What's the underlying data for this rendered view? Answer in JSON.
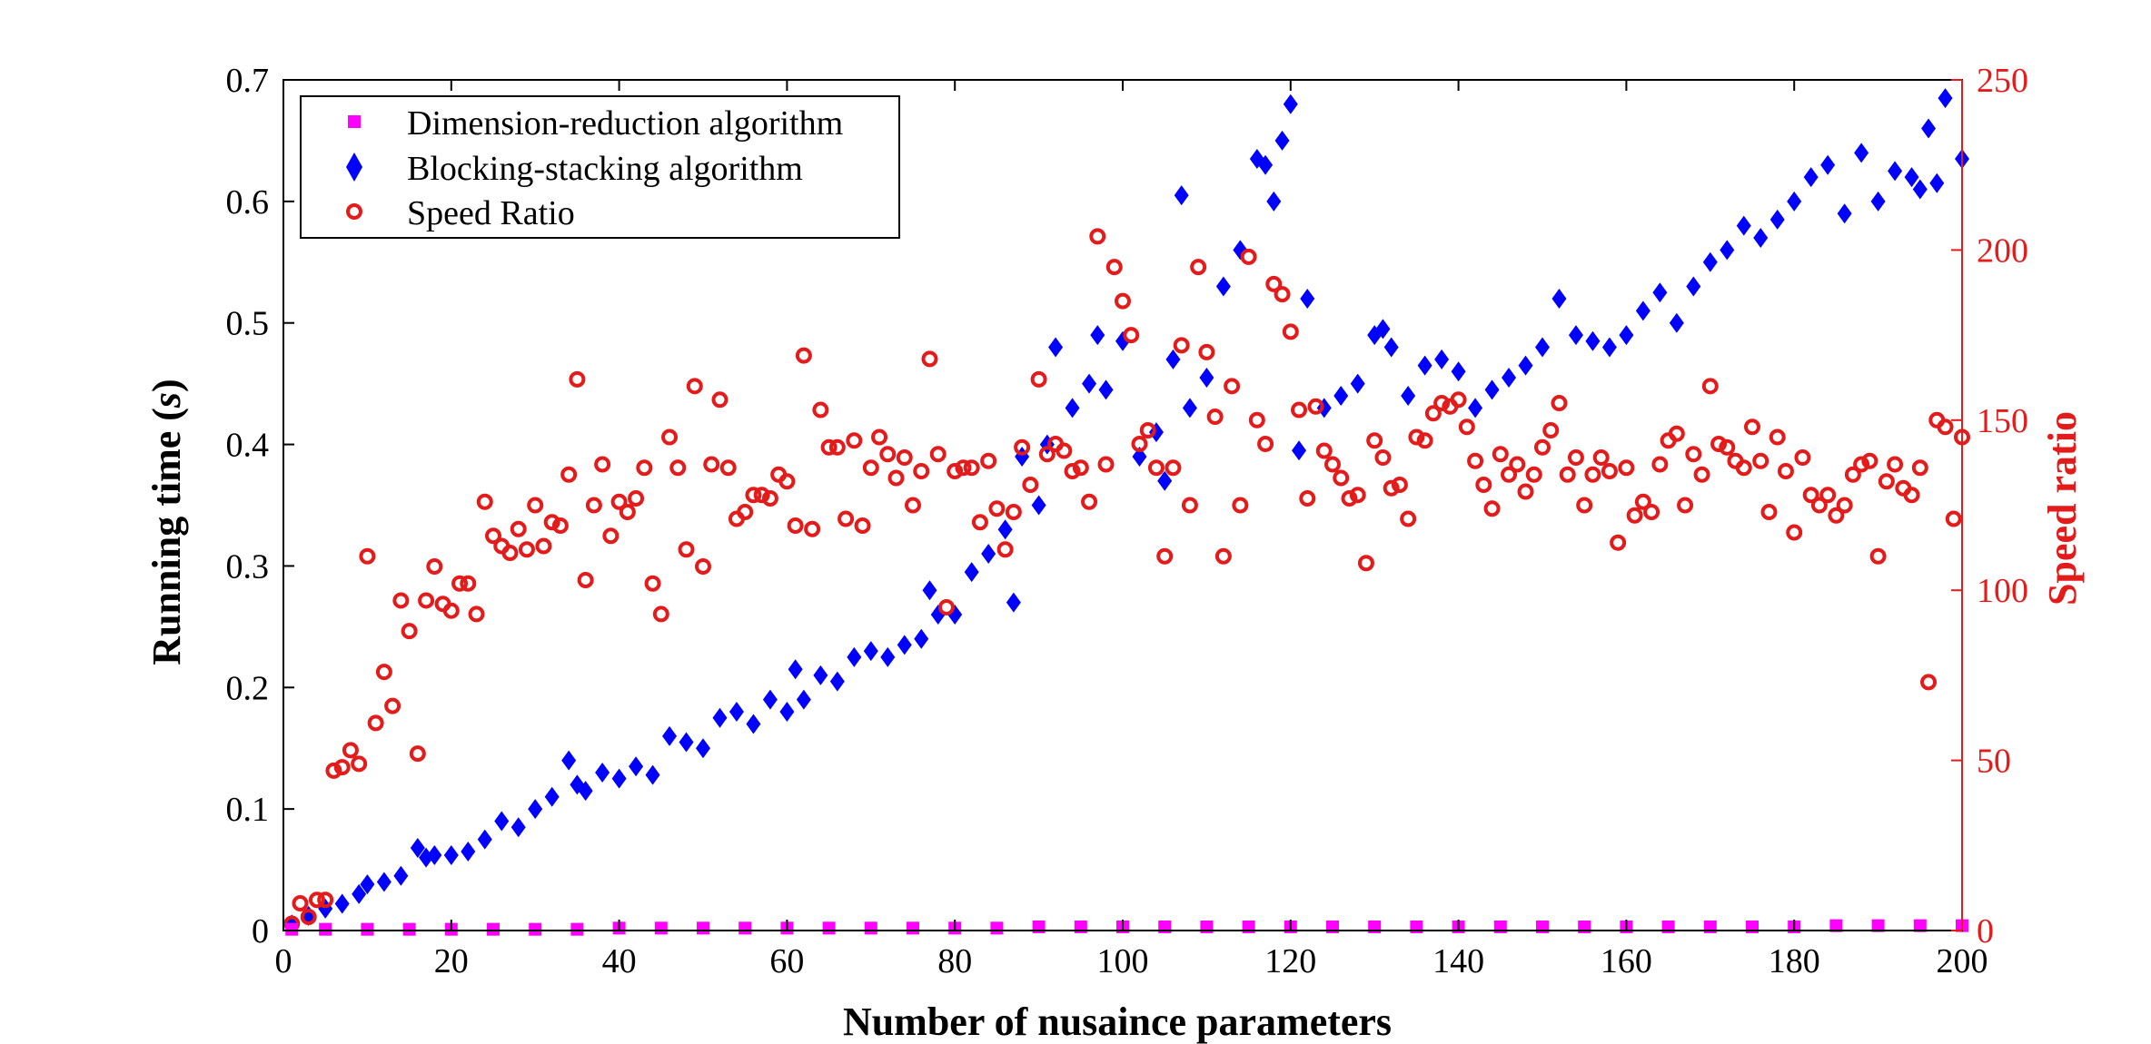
{
  "chart_data": {
    "type": "scatter",
    "xlabel": "Number of nusaince parameters",
    "ylabel": "Running time (s)",
    "ylabel_parts": [
      "Running time (",
      "s",
      ")"
    ],
    "y2label": "Speed ratio",
    "xlim": [
      0,
      200
    ],
    "ylim": [
      0,
      0.7
    ],
    "y2lim": [
      0,
      250
    ],
    "x_ticks": [
      "0",
      "20",
      "40",
      "60",
      "80",
      "100",
      "120",
      "140",
      "160",
      "180",
      "200"
    ],
    "y_ticks": [
      "0",
      "0.1",
      "0.2",
      "0.3",
      "0.4",
      "0.5",
      "0.6",
      "0.7"
    ],
    "y2_ticks": [
      "0",
      "50",
      "100",
      "150",
      "200",
      "250"
    ],
    "grid": false,
    "legend_position": "top-left",
    "colors": {
      "dimension": "#ff00ff",
      "blocking": "#0000ff",
      "ratio": "#e41b1b",
      "right_axis": "#e41b1b"
    },
    "series": [
      {
        "name": "Dimension-reduction algorithm",
        "marker": "square",
        "axis": "left",
        "x": [
          1,
          5,
          10,
          15,
          20,
          25,
          30,
          35,
          40,
          45,
          50,
          55,
          60,
          65,
          70,
          75,
          80,
          85,
          90,
          95,
          100,
          105,
          110,
          115,
          120,
          125,
          130,
          135,
          140,
          145,
          150,
          155,
          160,
          165,
          170,
          175,
          180,
          185,
          190,
          195,
          200
        ],
        "values": [
          0.001,
          0.001,
          0.001,
          0.001,
          0.001,
          0.001,
          0.001,
          0.001,
          0.002,
          0.002,
          0.002,
          0.002,
          0.002,
          0.002,
          0.002,
          0.002,
          0.002,
          0.002,
          0.003,
          0.003,
          0.003,
          0.003,
          0.003,
          0.003,
          0.003,
          0.003,
          0.003,
          0.003,
          0.003,
          0.003,
          0.003,
          0.003,
          0.003,
          0.003,
          0.003,
          0.003,
          0.003,
          0.004,
          0.004,
          0.004,
          0.004
        ]
      },
      {
        "name": "Blocking-stacking algorithm",
        "marker": "diamond",
        "axis": "left",
        "x": [
          1,
          3,
          5,
          7,
          9,
          10,
          12,
          14,
          16,
          17,
          18,
          20,
          22,
          24,
          26,
          28,
          30,
          32,
          34,
          35,
          36,
          38,
          40,
          42,
          44,
          46,
          48,
          50,
          52,
          54,
          56,
          58,
          60,
          61,
          62,
          64,
          66,
          68,
          70,
          72,
          74,
          76,
          77,
          78,
          80,
          82,
          84,
          86,
          87,
          88,
          90,
          91,
          92,
          94,
          96,
          97,
          98,
          100,
          102,
          104,
          105,
          106,
          107,
          108,
          110,
          112,
          114,
          116,
          117,
          118,
          119,
          120,
          121,
          122,
          124,
          126,
          128,
          130,
          131,
          132,
          134,
          136,
          138,
          140,
          142,
          144,
          146,
          148,
          150,
          152,
          154,
          156,
          158,
          160,
          162,
          164,
          166,
          168,
          170,
          172,
          174,
          176,
          178,
          180,
          182,
          184,
          186,
          188,
          190,
          192,
          194,
          195,
          196,
          197,
          198,
          200
        ],
        "values": [
          0.005,
          0.012,
          0.018,
          0.022,
          0.03,
          0.038,
          0.04,
          0.045,
          0.068,
          0.06,
          0.062,
          0.062,
          0.065,
          0.075,
          0.09,
          0.085,
          0.1,
          0.11,
          0.14,
          0.12,
          0.115,
          0.13,
          0.125,
          0.135,
          0.128,
          0.16,
          0.155,
          0.15,
          0.175,
          0.18,
          0.17,
          0.19,
          0.18,
          0.215,
          0.19,
          0.21,
          0.205,
          0.225,
          0.23,
          0.225,
          0.235,
          0.24,
          0.28,
          0.26,
          0.26,
          0.295,
          0.31,
          0.33,
          0.27,
          0.39,
          0.35,
          0.4,
          0.48,
          0.43,
          0.45,
          0.49,
          0.445,
          0.485,
          0.39,
          0.41,
          0.37,
          0.47,
          0.605,
          0.43,
          0.455,
          0.53,
          0.56,
          0.635,
          0.63,
          0.6,
          0.65,
          0.68,
          0.395,
          0.52,
          0.43,
          0.44,
          0.45,
          0.49,
          0.495,
          0.48,
          0.44,
          0.465,
          0.47,
          0.46,
          0.43,
          0.445,
          0.455,
          0.465,
          0.48,
          0.52,
          0.49,
          0.485,
          0.48,
          0.49,
          0.51,
          0.525,
          0.5,
          0.53,
          0.55,
          0.56,
          0.58,
          0.57,
          0.585,
          0.6,
          0.62,
          0.63,
          0.59,
          0.64,
          0.6,
          0.625,
          0.62,
          0.61,
          0.66,
          0.615,
          0.685,
          0.635
        ]
      },
      {
        "name": "Speed Ratio",
        "marker": "circle",
        "axis": "right",
        "x": [
          1,
          2,
          3,
          4,
          5,
          6,
          7,
          8,
          9,
          10,
          11,
          12,
          13,
          14,
          15,
          16,
          17,
          18,
          19,
          20,
          21,
          22,
          23,
          24,
          25,
          26,
          27,
          28,
          29,
          30,
          31,
          32,
          33,
          34,
          35,
          36,
          37,
          38,
          39,
          40,
          41,
          42,
          43,
          44,
          45,
          46,
          47,
          48,
          49,
          50,
          51,
          52,
          53,
          54,
          55,
          56,
          57,
          58,
          59,
          60,
          61,
          62,
          63,
          64,
          65,
          66,
          67,
          68,
          69,
          70,
          71,
          72,
          73,
          74,
          75,
          76,
          77,
          78,
          79,
          80,
          81,
          82,
          83,
          84,
          85,
          86,
          87,
          88,
          89,
          90,
          91,
          92,
          93,
          94,
          95,
          96,
          97,
          98,
          99,
          100,
          101,
          102,
          103,
          104,
          105,
          106,
          107,
          108,
          109,
          110,
          111,
          112,
          113,
          114,
          115,
          116,
          117,
          118,
          119,
          120,
          121,
          122,
          123,
          124,
          125,
          126,
          127,
          128,
          129,
          130,
          131,
          132,
          133,
          134,
          135,
          136,
          137,
          138,
          139,
          140,
          141,
          142,
          143,
          144,
          145,
          146,
          147,
          148,
          149,
          150,
          151,
          152,
          153,
          154,
          155,
          156,
          157,
          158,
          159,
          160,
          161,
          162,
          163,
          164,
          165,
          166,
          167,
          168,
          169,
          170,
          171,
          172,
          173,
          174,
          175,
          176,
          177,
          178,
          179,
          180,
          181,
          182,
          183,
          184,
          185,
          186,
          187,
          188,
          189,
          190,
          191,
          192,
          193,
          194,
          195,
          196,
          197,
          198,
          199,
          200
        ],
        "values": [
          2,
          8,
          4,
          9,
          9,
          47,
          48,
          53,
          49,
          110,
          61,
          76,
          66,
          97,
          88,
          52,
          97,
          107,
          96,
          94,
          102,
          102,
          93,
          126,
          116,
          113,
          111,
          118,
          112,
          125,
          113,
          120,
          119,
          134,
          162,
          103,
          125,
          137,
          116,
          126,
          123,
          127,
          136,
          102,
          93,
          145,
          136,
          112,
          160,
          107,
          137,
          156,
          136,
          121,
          123,
          128,
          128,
          127,
          134,
          132,
          119,
          169,
          118,
          153,
          142,
          142,
          121,
          144,
          119,
          136,
          145,
          140,
          133,
          139,
          125,
          135,
          168,
          140,
          95,
          135,
          136,
          136,
          120,
          138,
          124,
          112,
          123,
          142,
          131,
          162,
          140,
          143,
          141,
          135,
          136,
          126,
          204,
          137,
          195,
          185,
          175,
          143,
          147,
          136,
          110,
          136,
          172,
          125,
          195,
          170,
          151,
          110,
          160,
          125,
          198,
          150,
          143,
          190,
          187,
          176,
          153,
          127,
          154,
          141,
          137,
          133,
          127,
          128,
          108,
          144,
          139,
          130,
          131,
          121,
          145,
          144,
          152,
          155,
          154,
          156,
          148,
          138,
          131,
          124,
          140,
          134,
          137,
          129,
          134,
          142,
          147,
          155,
          134,
          139,
          125,
          134,
          139,
          135,
          114,
          136,
          122,
          126,
          123,
          137,
          144,
          146,
          125,
          140,
          134,
          160,
          143,
          142,
          138,
          136,
          148,
          138,
          123,
          145,
          135,
          117,
          139,
          128,
          125,
          128,
          122,
          125,
          134,
          137,
          138,
          110,
          132,
          137,
          130,
          128,
          136,
          73,
          150,
          148,
          121,
          145
        ]
      }
    ]
  }
}
